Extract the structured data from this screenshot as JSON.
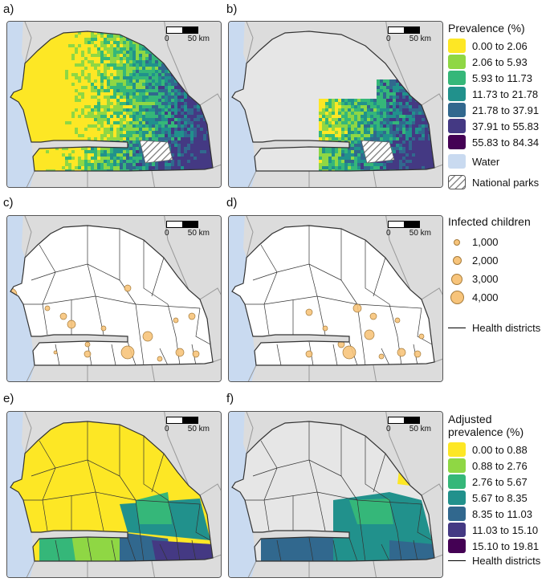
{
  "panel_labels": [
    "a)",
    "b)",
    "c)",
    "d)",
    "e)",
    "f)"
  ],
  "scale_bar": {
    "start": "0",
    "end": "50 km"
  },
  "prevalence_legend": {
    "title": "Prevalence (%)",
    "items": [
      {
        "label": "0.00 to 2.06",
        "color": "#fde725"
      },
      {
        "label": "2.06 to 5.93",
        "color": "#8fd744"
      },
      {
        "label": "5.93 to 11.73",
        "color": "#35b779"
      },
      {
        "label": "11.73 to 21.78",
        "color": "#21918c"
      },
      {
        "label": "21.78 to 37.91",
        "color": "#31688e"
      },
      {
        "label": "37.91 to 55.83",
        "color": "#443983"
      },
      {
        "label": "55.83 to 84.34",
        "color": "#440154"
      }
    ],
    "water_label": "Water",
    "water_color": "#c9daf0",
    "parks_label": "National parks"
  },
  "infected_legend": {
    "title": "Infected children",
    "items": [
      "1,000",
      "2,000",
      "3,000",
      "4,000"
    ],
    "districts_label": "Health districts"
  },
  "adjusted_legend": {
    "title_line1": "Adjusted",
    "title_line2": "prevalence (%)",
    "items": [
      {
        "label": "0.00 to 0.88",
        "color": "#fde725"
      },
      {
        "label": "0.88 to 2.76",
        "color": "#8fd744"
      },
      {
        "label": "2.76 to 5.67",
        "color": "#35b779"
      },
      {
        "label": "5.67 to 8.35",
        "color": "#21918c"
      },
      {
        "label": "8.35 to 11.03",
        "color": "#31688e"
      },
      {
        "label": "11.03 to 15.10",
        "color": "#443983"
      },
      {
        "label": "15.10 to 19.81",
        "color": "#440154"
      }
    ],
    "districts_label": "Health districts"
  },
  "colors": {
    "background_land": "#dcdcdc",
    "excluded": "#e6e6e6",
    "circle_fill": "#f7c47b"
  }
}
